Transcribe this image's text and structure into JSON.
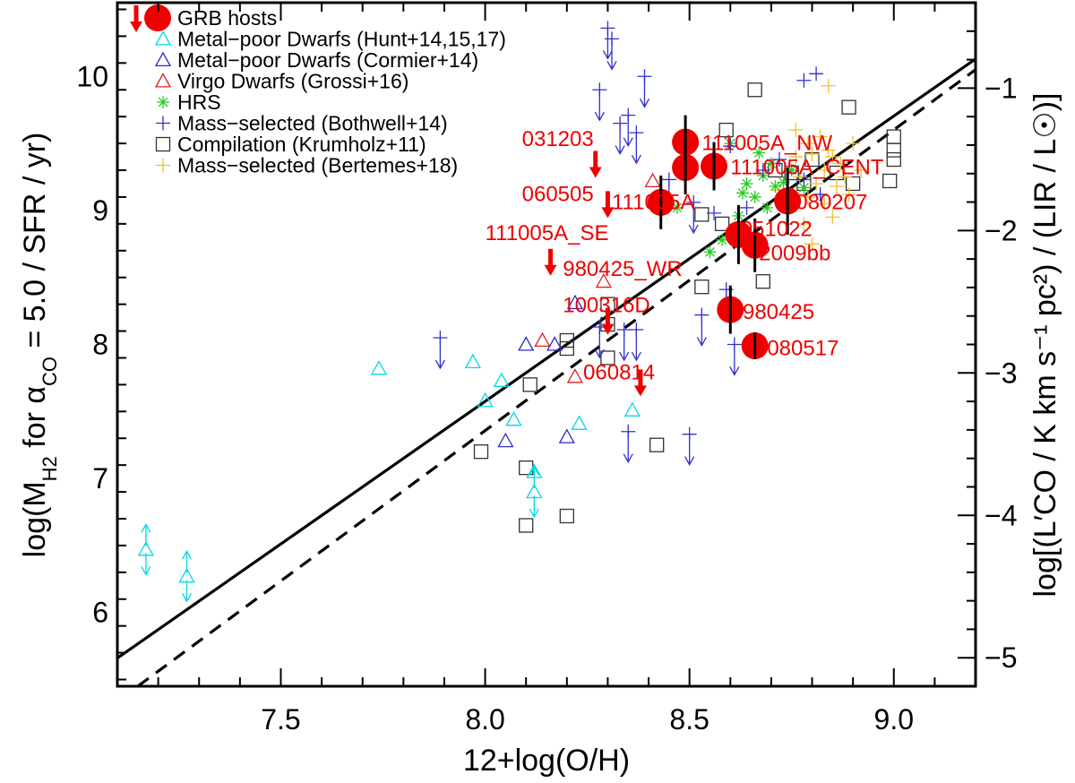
{
  "chart_data": {
    "type": "scatter",
    "xlabel": "12+log(O/H)",
    "ylabel_main": "log(M",
    "ylabel_sub": "H2",
    "ylabel_rest": "  for α",
    "ylabel_sub2": "CO",
    "ylabel_end": " = 5.0 / SFR / yr)",
    "y2label": "log[(L′CO / K km s⁻¹ pc²) / (LIR / L☉)]",
    "xlim": [
      7.1,
      9.2
    ],
    "ylim": [
      5.45,
      10.55
    ],
    "y2lim": [
      -5.2,
      -0.4
    ],
    "x_ticks": [
      7.5,
      8.0,
      8.5,
      9.0
    ],
    "x_tick_labels": [
      "7.5",
      "8.0",
      "8.5",
      "9.0"
    ],
    "y_ticks": [
      6,
      7,
      8,
      9,
      10
    ],
    "y_tick_labels": [
      "6",
      "7",
      "8",
      "9",
      "10"
    ],
    "y2_ticks": [
      -5,
      -4,
      -3,
      -2,
      -1
    ],
    "y2_tick_labels": [
      "−5",
      "−4",
      "−3",
      "−2",
      "−1"
    ],
    "legend": [
      {
        "label": "GRB hosts",
        "marker": "grb",
        "color": "#ee0000"
      },
      {
        "label": "Metal−poor Dwarfs (Hunt+14,15,17)",
        "marker": "triangle",
        "color": "#00d8e8"
      },
      {
        "label": "Metal−poor Dwarfs (Cormier+14)",
        "marker": "triangle",
        "color": "#2a2ad0"
      },
      {
        "label": "Virgo Dwarfs (Grossi+16)",
        "marker": "triangle",
        "color": "#e02020"
      },
      {
        "label": "HRS",
        "marker": "asterisk",
        "color": "#22cc22"
      },
      {
        "label": "Mass−selected (Bothwell+14)",
        "marker": "plus",
        "color": "#3030d0"
      },
      {
        "label": "Compilation (Krumholz+11)",
        "marker": "square",
        "color": "#333333"
      },
      {
        "label": "Mass−selected (Bertemes+18)",
        "marker": "plus",
        "color": "#f0c030"
      }
    ],
    "lines": [
      {
        "name": "relation-solid",
        "style": "solid",
        "x": [
          7.1,
          9.2
        ],
        "y": [
          5.66,
          10.13
        ]
      },
      {
        "name": "relation-dashed",
        "style": "dashed",
        "x": [
          7.15,
          9.2
        ],
        "y": [
          5.45,
          10.05
        ]
      }
    ],
    "grb_detections": [
      {
        "name": "111005A_NW",
        "x": 8.49,
        "y": 9.51,
        "yerr": 0.2
      },
      {
        "name": "111005A_CENT",
        "x": 8.49,
        "y": 9.32,
        "yerr": 0.2
      },
      {
        "name": "111005A_CENT-b",
        "x": 8.56,
        "y": 9.33,
        "yerr": 0.18
      },
      {
        "name": "111005A",
        "x": 8.43,
        "y": 9.06,
        "yerr": 0.2
      },
      {
        "name": "080207",
        "x": 8.74,
        "y": 9.07,
        "yerr": 0.25
      },
      {
        "name": "051022",
        "x": 8.62,
        "y": 8.82,
        "yerr": 0.22
      },
      {
        "name": "2009bb",
        "x": 8.66,
        "y": 8.74,
        "yerr": 0.2
      },
      {
        "name": "980425",
        "x": 8.6,
        "y": 8.26,
        "yerr": 0.18
      },
      {
        "name": "080517",
        "x": 8.66,
        "y": 7.99,
        "yerr": 0.1
      }
    ],
    "grb_upper_limits": [
      {
        "name": "031203",
        "x": 8.27,
        "y": 9.35
      },
      {
        "name": "060505",
        "x": 8.3,
        "y": 9.05
      },
      {
        "name": "111005A_SE",
        "x": 8.16,
        "y": 8.62
      },
      {
        "name": "100316D",
        "x": 8.3,
        "y": 8.18
      },
      {
        "name": "060814",
        "x": 8.38,
        "y": 7.72
      },
      {
        "name": "980425_WR",
        "x": null,
        "y": null
      }
    ],
    "grb_labels": [
      {
        "text": "111005A_NW",
        "x": 8.53,
        "y": 9.51
      },
      {
        "text": "111005A_CENT",
        "x": 8.6,
        "y": 9.33
      },
      {
        "text": "111005A",
        "x": 8.31,
        "y": 9.07
      },
      {
        "text": "080207",
        "x": 8.76,
        "y": 9.07
      },
      {
        "text": "051022",
        "x": 8.625,
        "y": 8.87
      },
      {
        "text": "2009bb",
        "x": 8.67,
        "y": 8.69
      },
      {
        "text": "980425",
        "x": 8.63,
        "y": 8.25
      },
      {
        "text": "080517",
        "x": 8.69,
        "y": 7.98
      },
      {
        "text": "031203",
        "x": 8.09,
        "y": 9.54
      },
      {
        "text": "060505",
        "x": 8.09,
        "y": 9.13
      },
      {
        "text": "111005A_SE",
        "x": 8.0,
        "y": 8.84
      },
      {
        "text": "980425_WR",
        "x": 8.19,
        "y": 8.57
      },
      {
        "text": "100316D",
        "x": 8.19,
        "y": 8.3
      },
      {
        "text": "060814",
        "x": 8.24,
        "y": 7.8
      }
    ],
    "hunt_dwarfs": [
      {
        "x": 7.74,
        "y": 7.82
      },
      {
        "x": 7.97,
        "y": 7.87
      },
      {
        "x": 8.0,
        "y": 7.58
      },
      {
        "x": 8.04,
        "y": 7.73
      },
      {
        "x": 8.07,
        "y": 7.44
      },
      {
        "x": 8.23,
        "y": 7.41
      },
      {
        "x": 8.36,
        "y": 7.51
      },
      {
        "x": 8.12,
        "y": 7.05
      }
    ],
    "hunt_dwarfs_limits": [
      {
        "x": 7.17,
        "y": 6.47
      },
      {
        "x": 7.27,
        "y": 6.27
      },
      {
        "x": 8.12,
        "y": 6.9
      }
    ],
    "cormier_dwarfs": [
      {
        "x": 8.1,
        "y": 8.0
      },
      {
        "x": 8.17,
        "y": 8.0
      },
      {
        "x": 8.22,
        "y": 8.31
      },
      {
        "x": 8.05,
        "y": 7.28
      },
      {
        "x": 8.2,
        "y": 7.31
      }
    ],
    "virgo_dwarfs": [
      {
        "x": 8.14,
        "y": 8.03
      },
      {
        "x": 8.22,
        "y": 7.76
      },
      {
        "x": 8.29,
        "y": 8.47
      },
      {
        "x": 8.41,
        "y": 9.22
      }
    ],
    "bothwell_limits": [
      {
        "x": 7.89,
        "y": 7.97
      },
      {
        "x": 8.3,
        "y": 10.28
      },
      {
        "x": 8.31,
        "y": 10.2
      },
      {
        "x": 8.28,
        "y": 9.82
      },
      {
        "x": 8.39,
        "y": 9.92
      },
      {
        "x": 8.33,
        "y": 9.57
      },
      {
        "x": 8.35,
        "y": 9.63
      },
      {
        "x": 8.37,
        "y": 9.5
      },
      {
        "x": 8.34,
        "y": 8.03
      },
      {
        "x": 8.37,
        "y": 8.03
      },
      {
        "x": 8.28,
        "y": 8.05
      },
      {
        "x": 8.59,
        "y": 8.33
      },
      {
        "x": 8.53,
        "y": 8.14
      },
      {
        "x": 8.61,
        "y": 7.92
      },
      {
        "x": 8.35,
        "y": 7.27
      },
      {
        "x": 8.5,
        "y": 7.25
      },
      {
        "x": 8.45,
        "y": 9.15
      },
      {
        "x": 8.51,
        "y": 8.98
      }
    ],
    "bothwell_points": [
      {
        "x": 8.78,
        "y": 9.97
      },
      {
        "x": 8.81,
        "y": 10.02
      },
      {
        "x": 8.6,
        "y": 9.48
      },
      {
        "x": 8.68,
        "y": 9.3
      },
      {
        "x": 8.72,
        "y": 9.38
      },
      {
        "x": 8.78,
        "y": 9.23
      },
      {
        "x": 8.82,
        "y": 9.12
      },
      {
        "x": 8.64,
        "y": 9.02
      },
      {
        "x": 8.56,
        "y": 8.98
      }
    ],
    "hrs": [
      {
        "x": 8.6,
        "y": 9.5
      },
      {
        "x": 8.64,
        "y": 9.2
      },
      {
        "x": 8.66,
        "y": 9.1
      },
      {
        "x": 8.68,
        "y": 9.26
      },
      {
        "x": 8.71,
        "y": 9.18
      },
      {
        "x": 8.73,
        "y": 9.21
      },
      {
        "x": 8.69,
        "y": 9.02
      },
      {
        "x": 8.62,
        "y": 8.96
      },
      {
        "x": 8.58,
        "y": 8.78
      },
      {
        "x": 8.67,
        "y": 9.43
      },
      {
        "x": 8.7,
        "y": 9.35
      },
      {
        "x": 8.75,
        "y": 9.3
      },
      {
        "x": 8.47,
        "y": 9.02
      },
      {
        "x": 8.55,
        "y": 8.69
      },
      {
        "x": 8.78,
        "y": 9.17
      },
      {
        "x": 8.63,
        "y": 9.13
      }
    ],
    "bertemes": [
      {
        "x": 8.84,
        "y": 9.93
      },
      {
        "x": 8.76,
        "y": 9.6
      },
      {
        "x": 8.79,
        "y": 9.5
      },
      {
        "x": 8.82,
        "y": 9.55
      },
      {
        "x": 8.85,
        "y": 9.4
      },
      {
        "x": 8.8,
        "y": 9.42
      },
      {
        "x": 8.83,
        "y": 9.3
      },
      {
        "x": 8.87,
        "y": 9.35
      },
      {
        "x": 8.9,
        "y": 9.5
      },
      {
        "x": 8.77,
        "y": 9.25
      },
      {
        "x": 8.81,
        "y": 9.2
      },
      {
        "x": 8.86,
        "y": 9.18
      },
      {
        "x": 8.88,
        "y": 9.25
      },
      {
        "x": 8.92,
        "y": 9.3
      },
      {
        "x": 8.79,
        "y": 9.1
      },
      {
        "x": 8.83,
        "y": 9.05
      },
      {
        "x": 8.85,
        "y": 8.95
      },
      {
        "x": 8.78,
        "y": 8.9
      },
      {
        "x": 8.8,
        "y": 8.75
      },
      {
        "x": 8.74,
        "y": 9.0
      },
      {
        "x": 8.72,
        "y": 9.15
      },
      {
        "x": 8.76,
        "y": 9.4
      },
      {
        "x": 8.89,
        "y": 9.12
      },
      {
        "x": 8.84,
        "y": 9.45
      }
    ],
    "krumholz": [
      {
        "x": 8.66,
        "y": 9.9
      },
      {
        "x": 8.89,
        "y": 9.77
      },
      {
        "x": 8.59,
        "y": 9.6
      },
      {
        "x": 9.0,
        "y": 9.55
      },
      {
        "x": 9.0,
        "y": 9.45
      },
      {
        "x": 9.0,
        "y": 9.38
      },
      {
        "x": 8.9,
        "y": 9.2
      },
      {
        "x": 8.99,
        "y": 9.22
      },
      {
        "x": 8.8,
        "y": 9.38
      },
      {
        "x": 8.75,
        "y": 9.28
      },
      {
        "x": 8.71,
        "y": 9.3
      },
      {
        "x": 8.53,
        "y": 8.97
      },
      {
        "x": 8.58,
        "y": 8.9
      },
      {
        "x": 8.53,
        "y": 8.43
      },
      {
        "x": 8.68,
        "y": 8.47
      },
      {
        "x": 8.3,
        "y": 8.3
      },
      {
        "x": 8.3,
        "y": 8.15
      },
      {
        "x": 8.2,
        "y": 8.03
      },
      {
        "x": 8.2,
        "y": 7.97
      },
      {
        "x": 8.11,
        "y": 7.7
      },
      {
        "x": 8.3,
        "y": 7.9
      },
      {
        "x": 7.99,
        "y": 7.2
      },
      {
        "x": 8.1,
        "y": 7.08
      },
      {
        "x": 8.42,
        "y": 7.25
      },
      {
        "x": 8.1,
        "y": 6.65
      },
      {
        "x": 8.2,
        "y": 6.72
      },
      {
        "x": 8.78,
        "y": 9.2
      },
      {
        "x": 8.86,
        "y": 9.28
      }
    ]
  }
}
